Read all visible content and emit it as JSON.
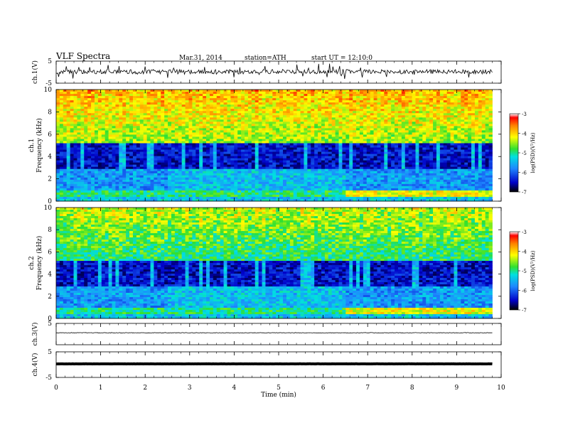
{
  "header": {
    "title": "VLF Spectra",
    "date": "Mar.31, 2014",
    "station": "station=ATH",
    "start": "start UT = 12:10:0"
  },
  "chart_data": [
    {
      "type": "line",
      "panel": "ch1-waveform",
      "ylabel": "ch.1(V)",
      "ylim": [
        -5,
        5
      ],
      "yticks": [
        "5",
        "-5"
      ],
      "description_level": 0.2,
      "noise_amplitude": 0.8
    },
    {
      "type": "heatmap",
      "panel": "ch1-spectrogram",
      "ylabel": "ch.1\nFrequency (kHz)",
      "ylim": [
        0,
        10
      ],
      "yticks": [
        "0",
        "2",
        "4",
        "6",
        "8",
        "10"
      ],
      "colorbar": {
        "label": "log(PSD)(V²/Hz)",
        "range": [
          -7,
          -3
        ],
        "ticks": [
          "-3",
          "-4",
          "-5",
          "-6",
          "-7"
        ]
      }
    },
    {
      "type": "heatmap",
      "panel": "ch2-spectrogram",
      "ylabel": "ch.2\nFrequency (kHz)",
      "ylim": [
        0,
        10
      ],
      "yticks": [
        "0",
        "2",
        "4",
        "6",
        "8",
        "10"
      ],
      "colorbar": {
        "label": "log(PSD)(V²/Hz)",
        "range": [
          -7,
          -3
        ],
        "ticks": [
          "-3",
          "-4",
          "-5",
          "-6",
          "-7"
        ]
      }
    },
    {
      "type": "line",
      "panel": "ch3-waveform",
      "ylabel": "ch.3(V)",
      "ylim": [
        -5,
        5
      ],
      "yticks": [
        "5"
      ],
      "level": 0.6
    },
    {
      "type": "line",
      "panel": "ch4-waveform",
      "ylabel": "ch.4(V)",
      "ylim": [
        -5,
        5
      ],
      "yticks": [
        "5",
        "-5"
      ],
      "level": 0.3
    },
    {
      "type": "axis",
      "xlabel": "Time (min)",
      "xlim": [
        0,
        10
      ],
      "xticks": [
        "0",
        "1",
        "2",
        "3",
        "4",
        "5",
        "6",
        "7",
        "8",
        "9",
        "10"
      ],
      "data_end": 9.8
    }
  ]
}
